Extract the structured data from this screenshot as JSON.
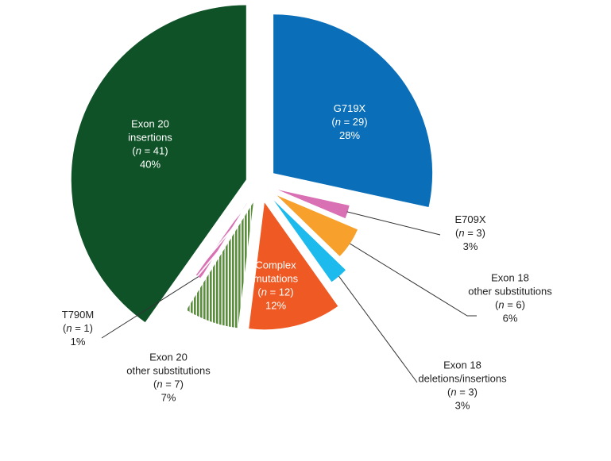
{
  "chart_data": {
    "type": "pie",
    "title": "",
    "total": 102,
    "slices": [
      {
        "name": "G719X",
        "n": 29,
        "percent": "28%",
        "color": "#0a6fb8",
        "pattern": "solid",
        "label": [
          "G719X",
          "n = 29",
          "28%"
        ],
        "label_color": "#ffffff",
        "label_inside": true
      },
      {
        "name": "E709X",
        "n": 3,
        "percent": "3%",
        "color": "#d970b3",
        "pattern": "solid",
        "label": [
          "E709X",
          "n = 3",
          "3%"
        ],
        "label_color": "#222222",
        "label_inside": false
      },
      {
        "name": "Exon 18 other substitutions",
        "n": 6,
        "percent": "6%",
        "color": "#f7a12c",
        "pattern": "solid",
        "label": [
          "Exon 18",
          "other substitutions",
          "n = 6",
          "6%"
        ],
        "label_color": "#222222",
        "label_inside": false
      },
      {
        "name": "Exon 18 deletions/insertions",
        "n": 3,
        "percent": "3%",
        "color": "#1cbaed",
        "pattern": "solid",
        "label": [
          "Exon 18",
          "deletions/insertions",
          "n = 3",
          "3%"
        ],
        "label_color": "#222222",
        "label_inside": false
      },
      {
        "name": "Complex mutations",
        "n": 12,
        "percent": "12%",
        "color": "#ef5a24",
        "pattern": "solid",
        "label": [
          "Complex",
          "mutations",
          "n = 12",
          "12%"
        ],
        "label_color": "#ffffff",
        "label_inside": true
      },
      {
        "name": "Exon 20 other substitutions",
        "n": 7,
        "percent": "7%",
        "color": "#5a8e3c",
        "pattern": "vstripes",
        "label": [
          "Exon 20",
          "other substitutions",
          "n = 7",
          "7%"
        ],
        "label_color": "#222222",
        "label_inside": false
      },
      {
        "name": "T790M",
        "n": 1,
        "percent": "1%",
        "color": "#d970b3",
        "pattern": "diagonal",
        "label": [
          "T790M",
          "n = 1",
          "1%"
        ],
        "label_color": "#222222",
        "label_inside": false
      },
      {
        "name": "Exon 20 insertions",
        "n": 41,
        "percent": "40%",
        "color": "#0f5227",
        "pattern": "solid",
        "label": [
          "Exon 20",
          "insertions",
          "n = 41",
          "40%"
        ],
        "label_color": "#ffffff",
        "label_inside": true
      }
    ]
  }
}
